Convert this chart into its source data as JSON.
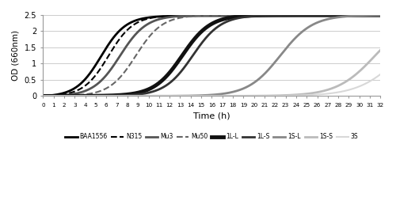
{
  "title": "",
  "xlabel": "Time (h)",
  "ylabel": "OD (660nm)",
  "xlim": [
    0,
    32
  ],
  "ylim": [
    0,
    2.5
  ],
  "xticks": [
    0,
    1,
    2,
    3,
    4,
    5,
    6,
    7,
    8,
    9,
    10,
    11,
    12,
    13,
    14,
    15,
    16,
    17,
    18,
    19,
    20,
    21,
    22,
    23,
    24,
    25,
    26,
    27,
    28,
    29,
    30,
    31,
    32
  ],
  "yticks": [
    0,
    0.5,
    1.0,
    1.5,
    2.0,
    2.5
  ],
  "background_color": "#ffffff",
  "grid_color": "#cccccc",
  "series": [
    {
      "name": "BAA1556",
      "color": "#000000",
      "lw": 2.0,
      "ls": "solid",
      "lag": 3.5,
      "k": 0.85,
      "midpoint": 5.5
    },
    {
      "name": "N315",
      "color": "#000000",
      "lw": 1.5,
      "ls": "dashed",
      "lag": 4.2,
      "k": 0.85,
      "midpoint": 6.2
    },
    {
      "name": "Mu3",
      "color": "#555555",
      "lw": 2.0,
      "ls": "solid",
      "lag": 5.0,
      "k": 0.8,
      "midpoint": 7.3
    },
    {
      "name": "Mu50",
      "color": "#666666",
      "lw": 1.5,
      "ls": "dashed",
      "lag": 6.5,
      "k": 0.8,
      "midpoint": 8.8
    },
    {
      "name": "1L-L",
      "color": "#111111",
      "lw": 3.5,
      "ls": "solid",
      "lag": 10.5,
      "k": 0.75,
      "midpoint": 13.2
    },
    {
      "name": "1L-S",
      "color": "#333333",
      "lw": 2.0,
      "ls": "solid",
      "lag": 11.5,
      "k": 0.75,
      "midpoint": 14.2
    },
    {
      "name": "1S-L",
      "color": "#888888",
      "lw": 2.0,
      "ls": "solid",
      "lag": 19.0,
      "k": 0.65,
      "midpoint": 22.5
    },
    {
      "name": "1S-S",
      "color": "#bbbbbb",
      "lw": 2.0,
      "ls": "solid",
      "lag": 27.5,
      "k": 0.55,
      "midpoint": 31.5
    },
    {
      "name": "3S",
      "color": "#d8d8d8",
      "lw": 1.5,
      "ls": "solid",
      "lag": 30.0,
      "k": 0.5,
      "midpoint": 34.0
    }
  ]
}
